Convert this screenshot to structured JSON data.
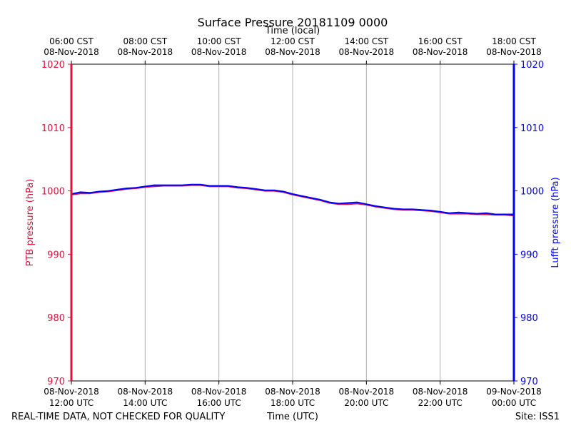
{
  "chart_data": {
    "type": "line",
    "title": "Surface Pressure 20181109 0000",
    "xlabel_bottom": "Time (UTC)",
    "xlabel_top": "Time (local)",
    "ylabel_left": "PTB pressure (hPa)",
    "ylabel_right": "Lufft pressure (hPa)",
    "ylim": [
      970,
      1020
    ],
    "xlim_hours_utc": [
      12,
      24
    ],
    "grid": "vertical",
    "y_ticks": [
      "970",
      "980",
      "990",
      "1000",
      "1010",
      "1020"
    ],
    "x_ticks_bottom": [
      {
        "hour": 12,
        "date": "08-Nov-2018",
        "time": "12:00 UTC"
      },
      {
        "hour": 14,
        "date": "08-Nov-2018",
        "time": "14:00 UTC"
      },
      {
        "hour": 16,
        "date": "08-Nov-2018",
        "time": "16:00 UTC"
      },
      {
        "hour": 18,
        "date": "08-Nov-2018",
        "time": "18:00 UTC"
      },
      {
        "hour": 20,
        "date": "08-Nov-2018",
        "time": "20:00 UTC"
      },
      {
        "hour": 22,
        "date": "08-Nov-2018",
        "time": "22:00 UTC"
      },
      {
        "hour": 24,
        "date": "09-Nov-2018",
        "time": "00:00 UTC"
      }
    ],
    "x_ticks_top": [
      {
        "hour": 12,
        "time": "06:00 CST",
        "date": "08-Nov-2018"
      },
      {
        "hour": 14,
        "time": "08:00 CST",
        "date": "08-Nov-2018"
      },
      {
        "hour": 16,
        "time": "10:00 CST",
        "date": "08-Nov-2018"
      },
      {
        "hour": 18,
        "time": "12:00 CST",
        "date": "08-Nov-2018"
      },
      {
        "hour": 20,
        "time": "14:00 CST",
        "date": "08-Nov-2018"
      },
      {
        "hour": 22,
        "time": "16:00 CST",
        "date": "08-Nov-2018"
      },
      {
        "hour": 24,
        "time": "18:00 CST",
        "date": "08-Nov-2018"
      }
    ],
    "series": [
      {
        "name": "PTB pressure",
        "color": "#dc143c",
        "x": [
          12.0,
          12.25,
          12.5,
          12.75,
          13.0,
          13.25,
          13.5,
          13.75,
          14.0,
          14.25,
          14.5,
          14.75,
          15.0,
          15.25,
          15.5,
          15.75,
          16.0,
          16.25,
          16.5,
          16.75,
          17.0,
          17.25,
          17.5,
          17.75,
          18.0,
          18.25,
          18.5,
          18.75,
          19.0,
          19.25,
          19.5,
          19.75,
          20.0,
          20.25,
          20.5,
          20.75,
          21.0,
          21.25,
          21.5,
          21.75,
          22.0,
          22.25,
          22.5,
          22.75,
          23.0,
          23.25,
          23.5,
          23.75,
          24.0
        ],
        "values": [
          999.4,
          999.6,
          999.6,
          999.8,
          999.9,
          1000.1,
          1000.3,
          1000.4,
          1000.6,
          1000.7,
          1000.8,
          1000.8,
          1000.8,
          1000.9,
          1000.9,
          1000.7,
          1000.7,
          1000.7,
          1000.5,
          1000.4,
          1000.2,
          1000.0,
          1000.0,
          999.8,
          999.4,
          999.1,
          998.8,
          998.5,
          998.1,
          997.9,
          997.9,
          998.0,
          997.8,
          997.5,
          997.3,
          997.1,
          997.0,
          997.0,
          996.9,
          996.8,
          996.6,
          996.4,
          996.4,
          996.4,
          996.3,
          996.3,
          996.2,
          996.2,
          996.1
        ]
      },
      {
        "name": "Lufft pressure",
        "color": "#0000ff",
        "x": [
          12.0,
          12.25,
          12.5,
          12.75,
          13.0,
          13.25,
          13.5,
          13.75,
          14.0,
          14.25,
          14.5,
          14.75,
          15.0,
          15.25,
          15.5,
          15.75,
          16.0,
          16.25,
          16.5,
          16.75,
          17.0,
          17.25,
          17.5,
          17.75,
          18.0,
          18.25,
          18.5,
          18.75,
          19.0,
          19.25,
          19.5,
          19.75,
          20.0,
          20.25,
          20.5,
          20.75,
          21.0,
          21.25,
          21.5,
          21.75,
          22.0,
          22.25,
          22.5,
          22.75,
          23.0,
          23.25,
          23.5,
          23.75,
          24.0
        ],
        "values": [
          999.5,
          999.8,
          999.7,
          999.9,
          1000.0,
          1000.2,
          1000.4,
          1000.5,
          1000.7,
          1000.9,
          1000.9,
          1000.9,
          1000.9,
          1001.0,
          1001.0,
          1000.8,
          1000.8,
          1000.8,
          1000.6,
          1000.5,
          1000.3,
          1000.1,
          1000.1,
          999.9,
          999.5,
          999.2,
          998.9,
          998.6,
          998.2,
          998.0,
          998.1,
          998.2,
          997.9,
          997.6,
          997.4,
          997.2,
          997.1,
          997.1,
          997.0,
          996.9,
          996.7,
          996.5,
          996.6,
          996.5,
          996.4,
          996.5,
          996.3,
          996.3,
          996.3
        ]
      }
    ]
  },
  "footer": {
    "left_note": "REAL-TIME DATA, NOT CHECKED FOR QUALITY",
    "site": "Site: ISS1"
  },
  "colors": {
    "left_axis": "#dc143c",
    "right_axis": "#0000ff",
    "grid": "#b0b0b0"
  }
}
